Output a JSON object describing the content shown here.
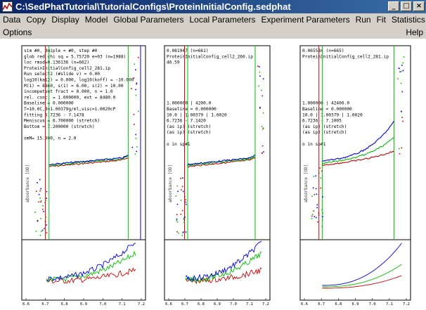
{
  "window": {
    "title": "C:\\SedPhatTutorial\\TutorialConfigs\\ProteinInitialConfig.sedphat",
    "min_glyph": "_",
    "max_glyph": "□",
    "close_glyph": "×"
  },
  "menu": {
    "row1": [
      "Data",
      "Copy",
      "Display",
      "Model",
      "Global Parameters",
      "Local Parameters",
      "Experiment Parameters",
      "Run",
      "Fit",
      "Statistics"
    ],
    "row2": [
      "Options"
    ],
    "help": "Help"
  },
  "panels": [
    {
      "info": [
        "sim #0, dmiple = #0, step #0",
        "glob red chi sq = 5.75720 e+03 (n=1988)",
        "loc rmsd=0.136136 (n=662)",
        "ProteinInitialConfig_cell2_281.ip",
        "Run select2 (#slide v) = 0.00",
        "log10(ka12) = 0.000, log10(koff) = -10.000",
        "M(1) = 8860, s(1) = 6.00, s(2) = 10.00",
        "incompetent fract = 0.000, n = 1.0",
        "rel. conc. = 1.000000, ext = 8480.0",
        "Baseline = 0.000000",
        "T=10.0C,d=1.00379g/ml,visc=1.0020cP",
        "fitting 6.7236 - 7.1478",
        "Meniscus = 6.700000 (stretch)",
        "Bottom = 7.200000 (stretch)",
        "",
        "omM= 15.000, n = 2.0"
      ],
      "ylabel": "absorbance [OD]",
      "xticks": [
        "6.6",
        "6.7",
        "6.8",
        "6.9",
        "7.0",
        "7.1",
        "7.2"
      ]
    },
    {
      "info": [
        "0.081947 (n=661)",
        "ProteinInitialConfig_cell2_260.ip",
        "46.59",
        "",
        "",
        "",
        "",
        "",
        "",
        "1.000000 | 4200.0",
        "Baseline = 0.000000",
        "10.0 | 1.00379 | 1.0020",
        "6.7236 - 7.1420",
        "(as ip) (stretch)",
        "(as ip) (stretch)",
        "",
        "o in sp#1"
      ],
      "ylabel": "absorbance [OD]",
      "xticks": [
        "6.6",
        "6.7",
        "6.8",
        "6.9",
        "7.0",
        "7.1",
        "7.2"
      ]
    },
    {
      "info": [
        "0.065584 (n=665)",
        "ProteinInitialConfig_cell2_281.ip",
        "",
        "",
        "",
        "",
        "",
        "",
        "",
        "1.000000 | 42400.0",
        "Baseline = 0.000000",
        "10.0 | 1.00379 | 1.0020",
        "6.7236 - 7.1005",
        "(as ip) (stretch)",
        "(as ip) (stretch)",
        "",
        "o in sp#1"
      ],
      "ylabel": "absorbance [OD]",
      "xticks": [
        "6.6",
        "6.7",
        "6.8",
        "6.9",
        "7.0",
        "7.1",
        "7.2"
      ]
    }
  ],
  "colors": {
    "titlebar": "#0a246a",
    "menubar": "#d4d0c8",
    "series_red": "#d00000",
    "series_green": "#00c000",
    "series_blue": "#0000e0",
    "limit_red": "#e00000",
    "limit_green": "#00c000",
    "limit_blue": "#0000ff"
  }
}
